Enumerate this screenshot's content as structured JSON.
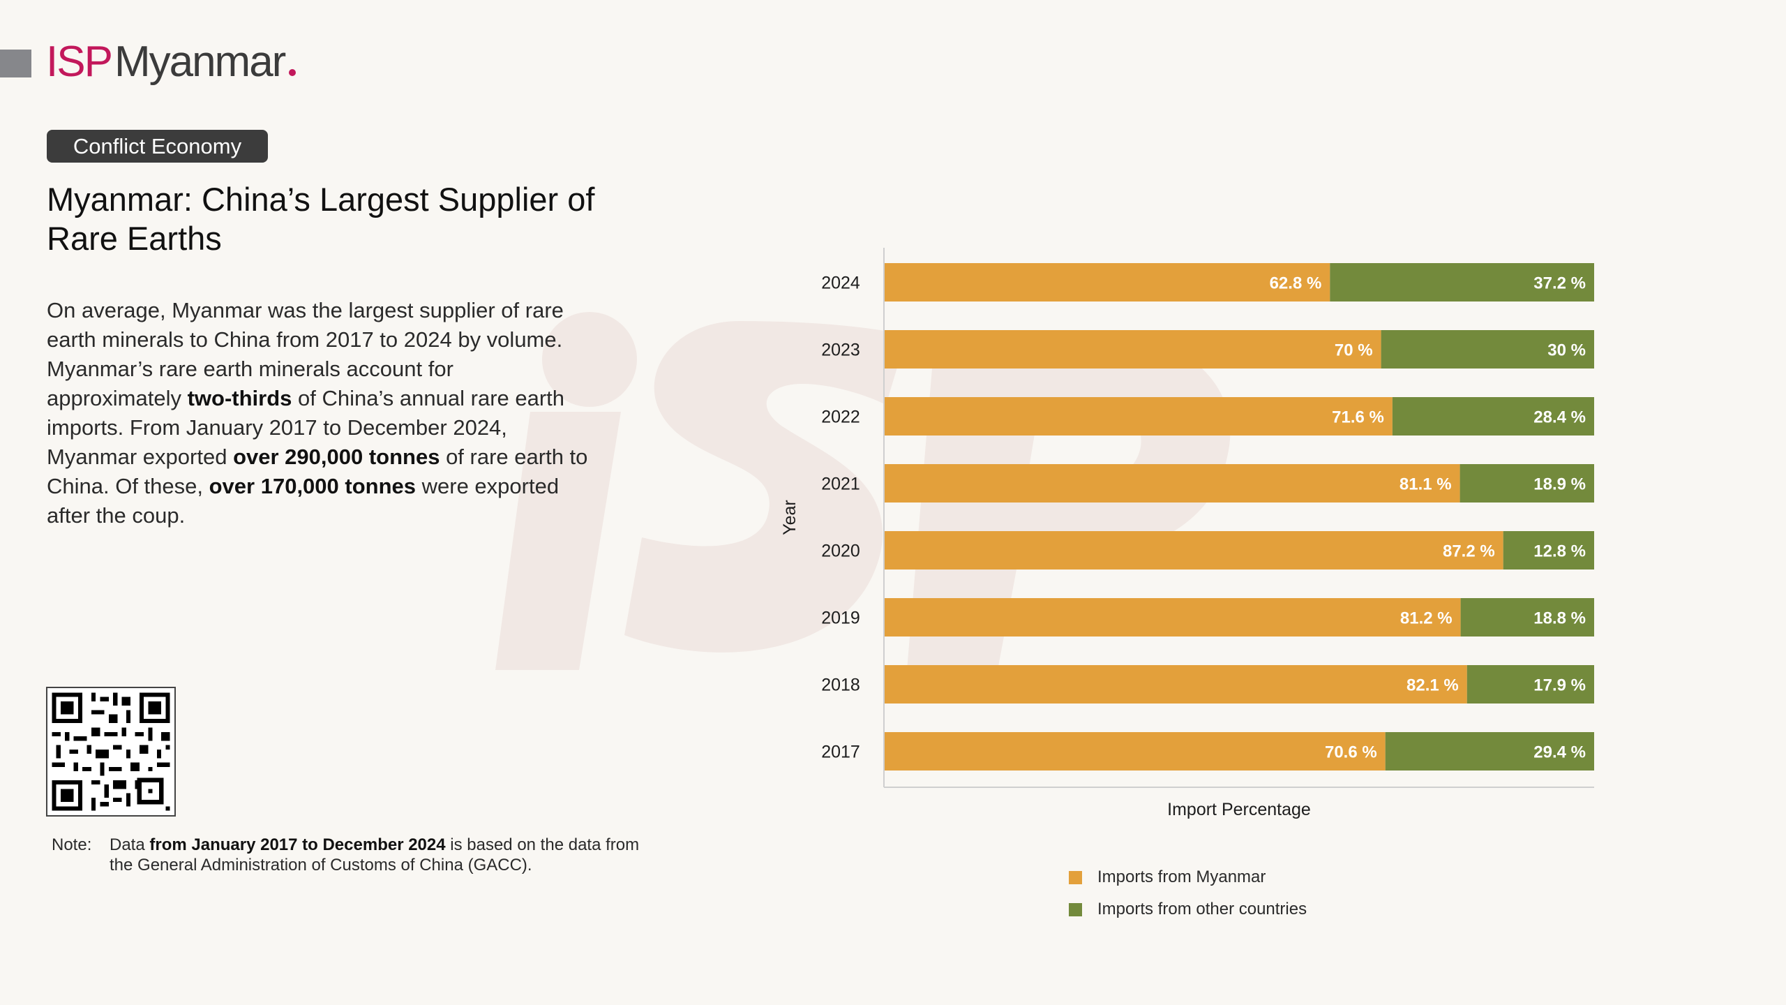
{
  "brand": {
    "logo_isp": "ISP",
    "logo_rest": "Myanmar"
  },
  "tag": "Conflict Economy",
  "title": "Myanmar: China’s Largest Supplier of Rare Earths",
  "body": {
    "p1": "On average, Myanmar was the largest supplier of rare earth minerals to China from 2017 to 2024 by volume. Myanmar’s rare earth minerals account for approximately ",
    "b1": "two-thirds",
    "p2": " of China’s annual rare earth imports. From January 2017 to December 2024, Myanmar exported ",
    "b2": "over 290,000 tonnes",
    "p3": " of rare earth to China. Of these, ",
    "b3": "over 170,000 tonnes",
    "p4": " were exported after the coup."
  },
  "note": {
    "label": "Note:",
    "t1": "Data ",
    "b1": "from January 2017 to December 2024",
    "t2": " is based on the data from the General Administration of Customs of China (GACC)."
  },
  "colors": {
    "myanmar": "#e3a03b",
    "other": "#738a3c",
    "accent": "#c2185b"
  },
  "icons": {
    "qr": "qr-code-icon"
  },
  "chart_data": {
    "type": "bar",
    "orientation": "horizontal",
    "stacked": true,
    "categories": [
      "2024",
      "2023",
      "2022",
      "2021",
      "2020",
      "2019",
      "2018",
      "2017"
    ],
    "series": [
      {
        "name": "Imports from Myanmar",
        "values": [
          62.8,
          70,
          71.6,
          81.1,
          87.2,
          81.2,
          82.1,
          70.6
        ],
        "labels": [
          "62.8 %",
          "70 %",
          "71.6 %",
          "81.1 %",
          "87.2 %",
          "81.2 %",
          "82.1 %",
          "70.6 %"
        ]
      },
      {
        "name": "Imports from other countries",
        "values": [
          37.2,
          30,
          28.4,
          18.9,
          12.8,
          18.8,
          17.9,
          29.4
        ],
        "labels": [
          "37.2 %",
          "30 %",
          "28.4 %",
          "18.9 %",
          "12.8 %",
          "18.8 %",
          "17.9 %",
          "29.4 %"
        ]
      }
    ],
    "xlabel": "Import Percentage",
    "ylabel": "Year",
    "xlim": [
      0,
      100
    ],
    "grid": false,
    "legend": "bottom"
  }
}
